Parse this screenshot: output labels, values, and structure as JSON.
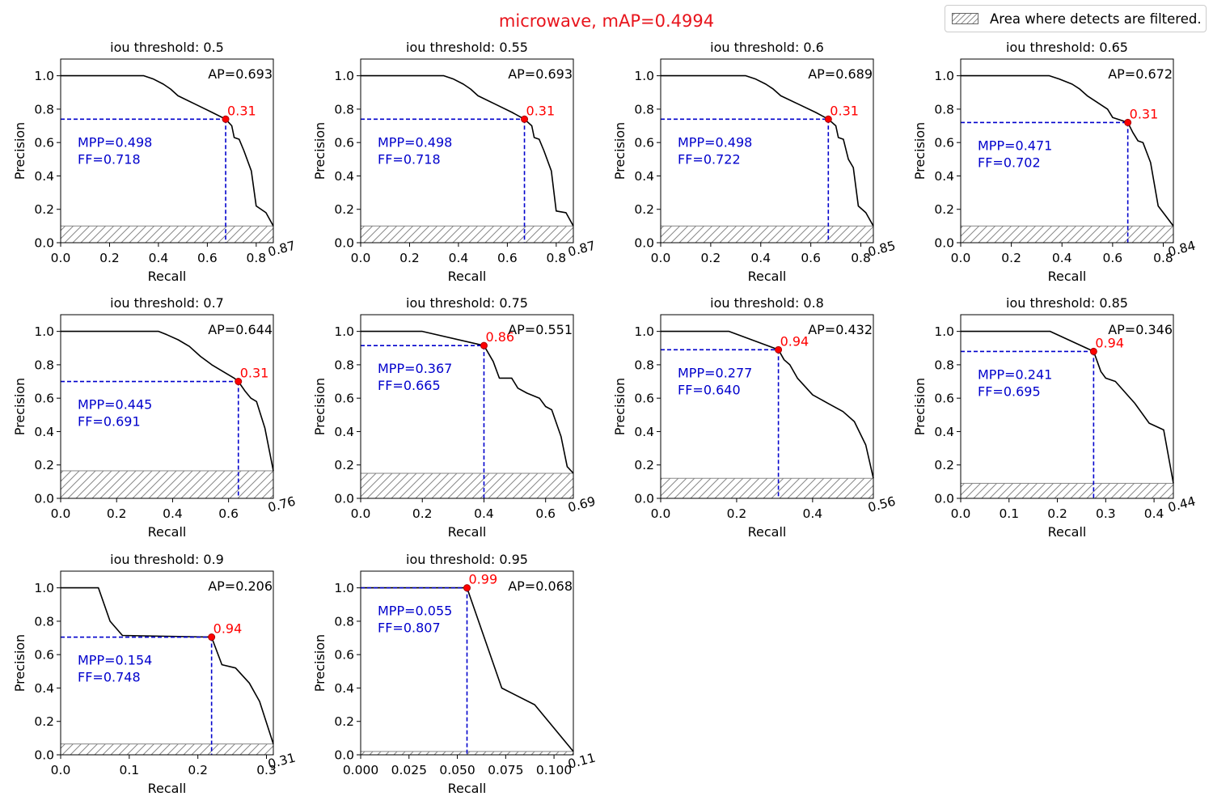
{
  "figure": {
    "title": "microwave, mAP=0.4994",
    "legend_label": "Area where detects are filtered.",
    "colors": {
      "curve": "#000000",
      "guide": "#0000cc",
      "marker": "#ff0000",
      "threshold_label": "#ff0000",
      "metrics_text": "#0000cc",
      "title": "#e8141c",
      "hatch": "#888888"
    }
  },
  "chart_data": [
    {
      "type": "line",
      "title": "iou threshold: 0.5",
      "xlabel": "Recall",
      "ylabel": "Precision",
      "xlim": [
        0,
        0.87
      ],
      "ylim": [
        0,
        1.1
      ],
      "xticks": [
        0.0,
        0.2,
        0.4,
        0.6,
        0.8
      ],
      "xtick_labels": [
        "0.0",
        "0.2",
        "0.4",
        "0.6",
        "0.8"
      ],
      "yticks": [
        0.0,
        0.2,
        0.4,
        0.6,
        0.8,
        1.0
      ],
      "ytick_labels": [
        "0.0",
        "0.2",
        "0.4",
        "0.6",
        "0.8",
        "1.0"
      ],
      "xmax_label": "0.87",
      "ap_label": "AP=0.693",
      "mpp_label": "MPP=0.498",
      "ff_label": "FF=0.718",
      "op_point": {
        "x": 0.675,
        "y": 0.74,
        "label": "0.31"
      },
      "filter_level": 0.1,
      "x": [
        0.0,
        0.34,
        0.38,
        0.42,
        0.45,
        0.48,
        0.55,
        0.62,
        0.675,
        0.7,
        0.71,
        0.73,
        0.75,
        0.78,
        0.8,
        0.84,
        0.87
      ],
      "y": [
        1.0,
        1.0,
        0.98,
        0.95,
        0.92,
        0.88,
        0.83,
        0.78,
        0.74,
        0.7,
        0.63,
        0.62,
        0.55,
        0.43,
        0.22,
        0.18,
        0.1
      ]
    },
    {
      "type": "line",
      "title": "iou threshold: 0.55",
      "xlabel": "Recall",
      "ylabel": "Precision",
      "xlim": [
        0,
        0.87
      ],
      "ylim": [
        0,
        1.1
      ],
      "xticks": [
        0.0,
        0.2,
        0.4,
        0.6,
        0.8
      ],
      "xtick_labels": [
        "0.0",
        "0.2",
        "0.4",
        "0.6",
        "0.8"
      ],
      "yticks": [
        0.0,
        0.2,
        0.4,
        0.6,
        0.8,
        1.0
      ],
      "ytick_labels": [
        "0.0",
        "0.2",
        "0.4",
        "0.6",
        "0.8",
        "1.0"
      ],
      "xmax_label": "0.87",
      "ap_label": "AP=0.693",
      "mpp_label": "MPP=0.498",
      "ff_label": "FF=0.718",
      "op_point": {
        "x": 0.67,
        "y": 0.74,
        "label": "0.31"
      },
      "filter_level": 0.1,
      "x": [
        0.0,
        0.34,
        0.38,
        0.42,
        0.45,
        0.48,
        0.55,
        0.62,
        0.67,
        0.7,
        0.71,
        0.73,
        0.75,
        0.78,
        0.8,
        0.84,
        0.87
      ],
      "y": [
        1.0,
        1.0,
        0.98,
        0.95,
        0.92,
        0.88,
        0.83,
        0.78,
        0.74,
        0.7,
        0.63,
        0.62,
        0.55,
        0.43,
        0.19,
        0.18,
        0.1
      ]
    },
    {
      "type": "line",
      "title": "iou threshold: 0.6",
      "xlabel": "Recall",
      "ylabel": "Precision",
      "xlim": [
        0,
        0.85
      ],
      "ylim": [
        0,
        1.1
      ],
      "xticks": [
        0.0,
        0.2,
        0.4,
        0.6,
        0.8
      ],
      "xtick_labels": [
        "0.0",
        "0.2",
        "0.4",
        "0.6",
        "0.8"
      ],
      "yticks": [
        0.0,
        0.2,
        0.4,
        0.6,
        0.8,
        1.0
      ],
      "ytick_labels": [
        "0.0",
        "0.2",
        "0.4",
        "0.6",
        "0.8",
        "1.0"
      ],
      "xmax_label": "0.85",
      "ap_label": "AP=0.689",
      "mpp_label": "MPP=0.498",
      "ff_label": "FF=0.722",
      "op_point": {
        "x": 0.67,
        "y": 0.74,
        "label": "0.31"
      },
      "filter_level": 0.1,
      "x": [
        0.0,
        0.34,
        0.38,
        0.42,
        0.45,
        0.48,
        0.55,
        0.62,
        0.67,
        0.7,
        0.71,
        0.73,
        0.75,
        0.77,
        0.79,
        0.82,
        0.85
      ],
      "y": [
        1.0,
        1.0,
        0.98,
        0.95,
        0.92,
        0.88,
        0.83,
        0.78,
        0.74,
        0.7,
        0.63,
        0.62,
        0.5,
        0.45,
        0.22,
        0.18,
        0.1
      ]
    },
    {
      "type": "line",
      "title": "iou threshold: 0.65",
      "xlabel": "Recall",
      "ylabel": "Precision",
      "xlim": [
        0,
        0.84
      ],
      "ylim": [
        0,
        1.1
      ],
      "xticks": [
        0.0,
        0.2,
        0.4,
        0.6,
        0.8
      ],
      "xtick_labels": [
        "0.0",
        "0.2",
        "0.4",
        "0.6",
        "0.8"
      ],
      "yticks": [
        0.0,
        0.2,
        0.4,
        0.6,
        0.8,
        1.0
      ],
      "ytick_labels": [
        "0.0",
        "0.2",
        "0.4",
        "0.6",
        "0.8",
        "1.0"
      ],
      "xmax_label": "0.84",
      "ap_label": "AP=0.672",
      "mpp_label": "MPP=0.471",
      "ff_label": "FF=0.702",
      "op_point": {
        "x": 0.66,
        "y": 0.72,
        "label": "0.31"
      },
      "filter_level": 0.1,
      "x": [
        0.0,
        0.35,
        0.39,
        0.44,
        0.47,
        0.5,
        0.54,
        0.58,
        0.6,
        0.66,
        0.68,
        0.7,
        0.72,
        0.75,
        0.78,
        0.8,
        0.84
      ],
      "y": [
        1.0,
        1.0,
        0.98,
        0.95,
        0.92,
        0.88,
        0.84,
        0.8,
        0.75,
        0.72,
        0.66,
        0.61,
        0.6,
        0.48,
        0.22,
        0.18,
        0.1
      ]
    },
    {
      "type": "line",
      "title": "iou threshold: 0.7",
      "xlabel": "Recall",
      "ylabel": "Precision",
      "xlim": [
        0,
        0.76
      ],
      "ylim": [
        0,
        1.1
      ],
      "xticks": [
        0.0,
        0.2,
        0.4,
        0.6
      ],
      "xtick_labels": [
        "0.0",
        "0.2",
        "0.4",
        "0.6"
      ],
      "yticks": [
        0.0,
        0.2,
        0.4,
        0.6,
        0.8,
        1.0
      ],
      "ytick_labels": [
        "0.0",
        "0.2",
        "0.4",
        "0.6",
        "0.8",
        "1.0"
      ],
      "xmax_label": "0.76",
      "ap_label": "AP=0.644",
      "mpp_label": "MPP=0.445",
      "ff_label": "FF=0.691",
      "op_point": {
        "x": 0.635,
        "y": 0.7,
        "label": "0.31"
      },
      "filter_level": 0.165,
      "x": [
        0.0,
        0.35,
        0.38,
        0.42,
        0.46,
        0.5,
        0.54,
        0.58,
        0.62,
        0.635,
        0.66,
        0.68,
        0.7,
        0.73,
        0.76
      ],
      "y": [
        1.0,
        1.0,
        0.98,
        0.95,
        0.91,
        0.85,
        0.8,
        0.76,
        0.72,
        0.7,
        0.64,
        0.6,
        0.58,
        0.42,
        0.165
      ]
    },
    {
      "type": "line",
      "title": "iou threshold: 0.75",
      "xlabel": "Recall",
      "ylabel": "Precision",
      "xlim": [
        0,
        0.69
      ],
      "ylim": [
        0,
        1.1
      ],
      "xticks": [
        0.0,
        0.2,
        0.4,
        0.6
      ],
      "xtick_labels": [
        "0.0",
        "0.2",
        "0.4",
        "0.6"
      ],
      "yticks": [
        0.0,
        0.2,
        0.4,
        0.6,
        0.8,
        1.0
      ],
      "ytick_labels": [
        "0.0",
        "0.2",
        "0.4",
        "0.6",
        "0.8",
        "1.0"
      ],
      "xmax_label": "0.69",
      "ap_label": "AP=0.551",
      "mpp_label": "MPP=0.367",
      "ff_label": "FF=0.665",
      "op_point": {
        "x": 0.4,
        "y": 0.915,
        "label": "0.86"
      },
      "filter_level": 0.15,
      "x": [
        0.0,
        0.2,
        0.4,
        0.43,
        0.45,
        0.49,
        0.51,
        0.54,
        0.58,
        0.6,
        0.62,
        0.65,
        0.67,
        0.69
      ],
      "y": [
        1.0,
        1.0,
        0.915,
        0.82,
        0.72,
        0.72,
        0.66,
        0.63,
        0.6,
        0.55,
        0.53,
        0.37,
        0.19,
        0.15
      ]
    },
    {
      "type": "line",
      "title": "iou threshold: 0.8",
      "xlabel": "Recall",
      "ylabel": "Precision",
      "xlim": [
        0,
        0.56
      ],
      "ylim": [
        0,
        1.1
      ],
      "xticks": [
        0.0,
        0.2,
        0.4
      ],
      "xtick_labels": [
        "0.0",
        "0.2",
        "0.4"
      ],
      "yticks": [
        0.0,
        0.2,
        0.4,
        0.6,
        0.8,
        1.0
      ],
      "ytick_labels": [
        "0.0",
        "0.2",
        "0.4",
        "0.6",
        "0.8",
        "1.0"
      ],
      "xmax_label": "0.56",
      "ap_label": "AP=0.432",
      "mpp_label": "MPP=0.277",
      "ff_label": "FF=0.640",
      "op_point": {
        "x": 0.31,
        "y": 0.89,
        "label": "0.94"
      },
      "filter_level": 0.12,
      "x": [
        0.0,
        0.18,
        0.31,
        0.325,
        0.34,
        0.36,
        0.4,
        0.44,
        0.48,
        0.51,
        0.54,
        0.56
      ],
      "y": [
        1.0,
        1.0,
        0.89,
        0.83,
        0.8,
        0.72,
        0.62,
        0.57,
        0.52,
        0.46,
        0.32,
        0.12
      ]
    },
    {
      "type": "line",
      "title": "iou threshold: 0.85",
      "xlabel": "Recall",
      "ylabel": "Precision",
      "xlim": [
        0,
        0.44
      ],
      "ylim": [
        0,
        1.1
      ],
      "xticks": [
        0.0,
        0.1,
        0.2,
        0.3,
        0.4
      ],
      "xtick_labels": [
        "0.0",
        "0.1",
        "0.2",
        "0.3",
        "0.4"
      ],
      "yticks": [
        0.0,
        0.2,
        0.4,
        0.6,
        0.8,
        1.0
      ],
      "ytick_labels": [
        "0.0",
        "0.2",
        "0.4",
        "0.6",
        "0.8",
        "1.0"
      ],
      "xmax_label": "0.44",
      "ap_label": "AP=0.346",
      "mpp_label": "MPP=0.241",
      "ff_label": "FF=0.695",
      "op_point": {
        "x": 0.275,
        "y": 0.88,
        "label": "0.94"
      },
      "filter_level": 0.09,
      "x": [
        0.0,
        0.185,
        0.275,
        0.29,
        0.3,
        0.32,
        0.36,
        0.39,
        0.42,
        0.43,
        0.44
      ],
      "y": [
        1.0,
        1.0,
        0.88,
        0.76,
        0.72,
        0.7,
        0.57,
        0.45,
        0.41,
        0.25,
        0.09
      ]
    },
    {
      "type": "line",
      "title": "iou threshold: 0.9",
      "xlabel": "Recall",
      "ylabel": "Precision",
      "xlim": [
        0,
        0.31
      ],
      "ylim": [
        0,
        1.1
      ],
      "xticks": [
        0.0,
        0.1,
        0.2,
        0.3
      ],
      "xtick_labels": [
        "0.0",
        "0.1",
        "0.2",
        "0.3"
      ],
      "yticks": [
        0.0,
        0.2,
        0.4,
        0.6,
        0.8,
        1.0
      ],
      "ytick_labels": [
        "0.0",
        "0.2",
        "0.4",
        "0.6",
        "0.8",
        "1.0"
      ],
      "xmax_label": "0.31",
      "ap_label": "AP=0.206",
      "mpp_label": "MPP=0.154",
      "ff_label": "FF=0.748",
      "op_point": {
        "x": 0.22,
        "y": 0.705,
        "label": "0.94"
      },
      "filter_level": 0.065,
      "x": [
        0.0,
        0.055,
        0.072,
        0.09,
        0.22,
        0.235,
        0.255,
        0.275,
        0.29,
        0.31
      ],
      "y": [
        1.0,
        1.0,
        0.8,
        0.715,
        0.705,
        0.54,
        0.52,
        0.43,
        0.32,
        0.065
      ]
    },
    {
      "type": "line",
      "title": "iou threshold: 0.95",
      "xlabel": "Recall",
      "ylabel": "Precision",
      "xlim": [
        0,
        0.11
      ],
      "ylim": [
        0,
        1.1
      ],
      "xticks": [
        0.0,
        0.025,
        0.05,
        0.075,
        0.1
      ],
      "xtick_labels": [
        "0.000",
        "0.025",
        "0.050",
        "0.075",
        "0.100"
      ],
      "yticks": [
        0.0,
        0.2,
        0.4,
        0.6,
        0.8,
        1.0
      ],
      "ytick_labels": [
        "0.0",
        "0.2",
        "0.4",
        "0.6",
        "0.8",
        "1.0"
      ],
      "xmax_label": "0.11",
      "ap_label": "AP=0.068",
      "mpp_label": "MPP=0.055",
      "ff_label": "FF=0.807",
      "op_point": {
        "x": 0.055,
        "y": 1.0,
        "label": "0.99"
      },
      "filter_level": 0.02,
      "x": [
        0.0,
        0.055,
        0.073,
        0.09,
        0.11
      ],
      "y": [
        1.0,
        1.0,
        0.4,
        0.3,
        0.02
      ]
    }
  ]
}
